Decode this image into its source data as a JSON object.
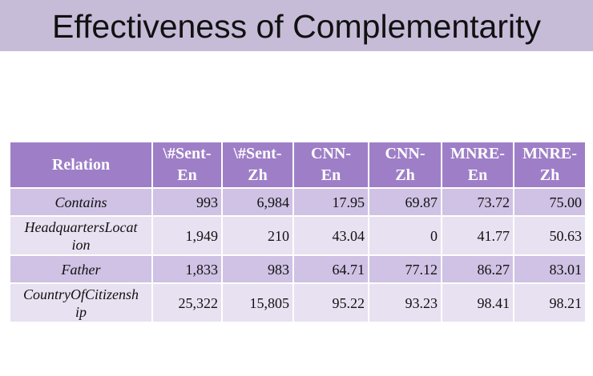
{
  "slide": {
    "title": "Effectiveness of Complementarity"
  },
  "table": {
    "headers": [
      [
        "Relation"
      ],
      [
        "\\#Sent-",
        "En"
      ],
      [
        "\\#Sent-",
        "Zh"
      ],
      [
        "CNN-",
        "En"
      ],
      [
        "CNN-",
        "Zh"
      ],
      [
        "MNRE-",
        "En"
      ],
      [
        "MNRE-",
        "Zh"
      ]
    ],
    "rows": [
      {
        "relation": [
          "Contains"
        ],
        "values": [
          "993",
          "6,984",
          "17.95",
          "69.87",
          "73.72",
          "75.00"
        ]
      },
      {
        "relation": [
          "HeadquartersLocat",
          "ion"
        ],
        "values": [
          "1,949",
          "210",
          "43.04",
          "0",
          "41.77",
          "50.63"
        ]
      },
      {
        "relation": [
          "Father"
        ],
        "values": [
          "1,833",
          "983",
          "64.71",
          "77.12",
          "86.27",
          "83.01"
        ]
      },
      {
        "relation": [
          "CountryOfCitizensh",
          "ip"
        ],
        "values": [
          "25,322",
          "15,805",
          "95.22",
          "93.23",
          "98.41",
          "98.21"
        ]
      }
    ]
  },
  "colors": {
    "title_band": "#c6bcd8",
    "header_fill": "#9e7fc7",
    "row_dark": "#cfc2e4",
    "row_light": "#e8e1f1"
  }
}
